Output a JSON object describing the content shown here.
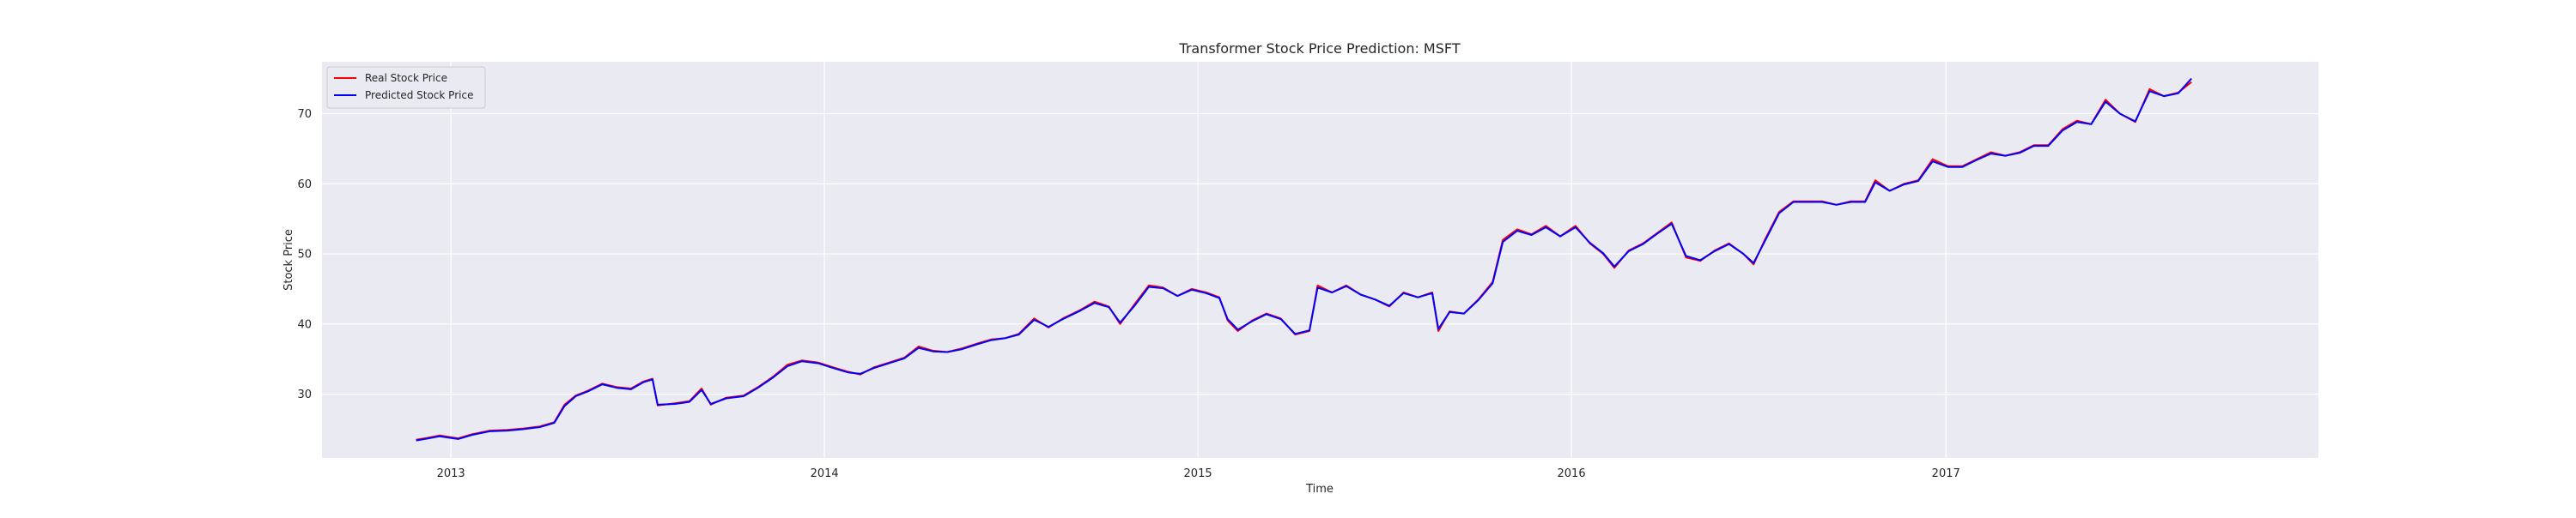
{
  "chart_data": {
    "type": "line",
    "title": "Transformer Stock Price Prediction: MSFT",
    "xlabel": "Time",
    "ylabel": "Stock Price",
    "x_range": [
      "2012-08-28",
      "2017-12-31"
    ],
    "ylim": [
      20.9,
      77.4
    ],
    "xticks": [
      {
        "date": "2013-01-01",
        "label": "2013"
      },
      {
        "date": "2014-01-01",
        "label": "2014"
      },
      {
        "date": "2015-01-01",
        "label": "2015"
      },
      {
        "date": "2016-01-01",
        "label": "2016"
      },
      {
        "date": "2017-01-01",
        "label": "2017"
      }
    ],
    "yticks": [
      30,
      40,
      50,
      60,
      70
    ],
    "grid": true,
    "style": "seaborn-darkgrid",
    "colors": {
      "background": "#eaeaf2",
      "grid": "#ffffff",
      "real": "#ff0000",
      "predicted": "#0000ff"
    },
    "legend": {
      "placement": "top-left",
      "entries": [
        {
          "label": "Real Stock Price",
          "color": "#ff0000"
        },
        {
          "label": "Predicted Stock Price",
          "color": "#0000ff"
        }
      ]
    },
    "series": [
      {
        "name": "Real Stock Price",
        "color": "#ff0000",
        "points": [
          [
            "2012-11-28",
            23.5
          ],
          [
            "2012-12-10",
            23.8
          ],
          [
            "2012-12-21",
            24.1
          ],
          [
            "2013-01-08",
            23.7
          ],
          [
            "2013-01-22",
            24.3
          ],
          [
            "2013-02-08",
            24.8
          ],
          [
            "2013-02-25",
            24.9
          ],
          [
            "2013-03-12",
            25.1
          ],
          [
            "2013-03-29",
            25.4
          ],
          [
            "2013-04-12",
            26.0
          ],
          [
            "2013-04-22",
            28.5
          ],
          [
            "2013-05-03",
            29.8
          ],
          [
            "2013-05-15",
            30.5
          ],
          [
            "2013-05-29",
            31.5
          ],
          [
            "2013-06-12",
            31.0
          ],
          [
            "2013-06-26",
            30.8
          ],
          [
            "2013-07-08",
            31.8
          ],
          [
            "2013-07-17",
            32.2
          ],
          [
            "2013-07-22",
            28.4
          ],
          [
            "2013-08-08",
            28.7
          ],
          [
            "2013-08-22",
            29.0
          ],
          [
            "2013-09-03",
            30.8
          ],
          [
            "2013-09-12",
            28.5
          ],
          [
            "2013-09-27",
            29.5
          ],
          [
            "2013-10-14",
            29.8
          ],
          [
            "2013-10-28",
            31.0
          ],
          [
            "2013-11-12",
            32.5
          ],
          [
            "2013-11-26",
            34.2
          ],
          [
            "2013-12-10",
            34.8
          ],
          [
            "2013-12-26",
            34.5
          ],
          [
            "2014-01-10",
            33.8
          ],
          [
            "2014-01-24",
            33.2
          ],
          [
            "2014-02-05",
            32.8
          ],
          [
            "2014-02-18",
            33.8
          ],
          [
            "2014-03-05",
            34.5
          ],
          [
            "2014-03-20",
            35.2
          ],
          [
            "2014-04-03",
            36.8
          ],
          [
            "2014-04-17",
            36.2
          ],
          [
            "2014-05-01",
            36.0
          ],
          [
            "2014-05-15",
            36.5
          ],
          [
            "2014-05-30",
            37.2
          ],
          [
            "2014-06-13",
            37.8
          ],
          [
            "2014-06-27",
            38.0
          ],
          [
            "2014-07-10",
            38.6
          ],
          [
            "2014-07-25",
            40.8
          ],
          [
            "2014-08-08",
            39.5
          ],
          [
            "2014-08-22",
            40.8
          ],
          [
            "2014-09-08",
            42.0
          ],
          [
            "2014-09-22",
            43.2
          ],
          [
            "2014-10-06",
            42.5
          ],
          [
            "2014-10-17",
            40.0
          ],
          [
            "2014-10-31",
            42.8
          ],
          [
            "2014-11-14",
            45.5
          ],
          [
            "2014-11-28",
            45.2
          ],
          [
            "2014-12-12",
            44.0
          ],
          [
            "2014-12-26",
            45.0
          ],
          [
            "2015-01-09",
            44.5
          ],
          [
            "2015-01-22",
            43.8
          ],
          [
            "2015-01-30",
            40.5
          ],
          [
            "2015-02-09",
            39.0
          ],
          [
            "2015-02-23",
            40.5
          ],
          [
            "2015-03-09",
            41.5
          ],
          [
            "2015-03-23",
            40.8
          ],
          [
            "2015-04-06",
            38.5
          ],
          [
            "2015-04-20",
            39.0
          ],
          [
            "2015-04-28",
            45.5
          ],
          [
            "2015-05-12",
            44.5
          ],
          [
            "2015-05-26",
            45.5
          ],
          [
            "2015-06-09",
            44.2
          ],
          [
            "2015-06-23",
            43.5
          ],
          [
            "2015-07-07",
            42.5
          ],
          [
            "2015-07-21",
            44.5
          ],
          [
            "2015-08-04",
            43.8
          ],
          [
            "2015-08-18",
            44.5
          ],
          [
            "2015-08-24",
            39.0
          ],
          [
            "2015-09-04",
            41.8
          ],
          [
            "2015-09-18",
            41.5
          ],
          [
            "2015-10-02",
            43.5
          ],
          [
            "2015-10-16",
            46.0
          ],
          [
            "2015-10-26",
            52.0
          ],
          [
            "2015-11-09",
            53.5
          ],
          [
            "2015-11-23",
            52.8
          ],
          [
            "2015-12-07",
            54.0
          ],
          [
            "2015-12-21",
            52.5
          ],
          [
            "2016-01-05",
            54.0
          ],
          [
            "2016-01-19",
            51.5
          ],
          [
            "2016-02-01",
            50.0
          ],
          [
            "2016-02-12",
            48.0
          ],
          [
            "2016-02-26",
            50.5
          ],
          [
            "2016-03-11",
            51.5
          ],
          [
            "2016-03-25",
            53.0
          ],
          [
            "2016-04-08",
            54.5
          ],
          [
            "2016-04-22",
            49.5
          ],
          [
            "2016-05-06",
            49.0
          ],
          [
            "2016-05-20",
            50.5
          ],
          [
            "2016-06-03",
            51.5
          ],
          [
            "2016-06-17",
            50.0
          ],
          [
            "2016-06-27",
            48.5
          ],
          [
            "2016-07-08",
            52.0
          ],
          [
            "2016-07-22",
            56.0
          ],
          [
            "2016-08-05",
            57.5
          ],
          [
            "2016-08-19",
            57.5
          ],
          [
            "2016-09-02",
            57.5
          ],
          [
            "2016-09-16",
            57.0
          ],
          [
            "2016-09-30",
            57.5
          ],
          [
            "2016-10-14",
            57.5
          ],
          [
            "2016-10-24",
            60.5
          ],
          [
            "2016-11-07",
            59.0
          ],
          [
            "2016-11-21",
            60.0
          ],
          [
            "2016-12-05",
            60.5
          ],
          [
            "2016-12-19",
            63.5
          ],
          [
            "2017-01-03",
            62.5
          ],
          [
            "2017-01-17",
            62.5
          ],
          [
            "2017-01-31",
            63.5
          ],
          [
            "2017-02-14",
            64.5
          ],
          [
            "2017-02-28",
            64.0
          ],
          [
            "2017-03-14",
            64.5
          ],
          [
            "2017-03-28",
            65.5
          ],
          [
            "2017-04-11",
            65.5
          ],
          [
            "2017-04-25",
            67.8
          ],
          [
            "2017-05-09",
            69.0
          ],
          [
            "2017-05-23",
            68.5
          ],
          [
            "2017-06-06",
            72.0
          ],
          [
            "2017-06-20",
            70.0
          ],
          [
            "2017-07-05",
            68.8
          ],
          [
            "2017-07-19",
            73.5
          ],
          [
            "2017-08-02",
            72.5
          ],
          [
            "2017-08-16",
            73.0
          ],
          [
            "2017-08-29",
            74.5
          ]
        ]
      },
      {
        "name": "Predicted Stock Price",
        "color": "#0000ff",
        "points": [
          [
            "2012-11-28",
            23.4
          ],
          [
            "2012-12-10",
            23.7
          ],
          [
            "2012-12-21",
            24.0
          ],
          [
            "2013-01-08",
            23.6
          ],
          [
            "2013-01-22",
            24.2
          ],
          [
            "2013-02-08",
            24.7
          ],
          [
            "2013-02-25",
            24.8
          ],
          [
            "2013-03-12",
            25.0
          ],
          [
            "2013-03-29",
            25.3
          ],
          [
            "2013-04-12",
            25.9
          ],
          [
            "2013-04-22",
            28.3
          ],
          [
            "2013-05-03",
            29.7
          ],
          [
            "2013-05-15",
            30.4
          ],
          [
            "2013-05-29",
            31.4
          ],
          [
            "2013-06-12",
            30.9
          ],
          [
            "2013-06-26",
            30.7
          ],
          [
            "2013-07-08",
            31.7
          ],
          [
            "2013-07-17",
            32.1
          ],
          [
            "2013-07-22",
            28.5
          ],
          [
            "2013-08-08",
            28.6
          ],
          [
            "2013-08-22",
            28.9
          ],
          [
            "2013-09-03",
            30.6
          ],
          [
            "2013-09-12",
            28.6
          ],
          [
            "2013-09-27",
            29.4
          ],
          [
            "2013-10-14",
            29.7
          ],
          [
            "2013-10-28",
            30.9
          ],
          [
            "2013-11-12",
            32.4
          ],
          [
            "2013-11-26",
            34.0
          ],
          [
            "2013-12-10",
            34.7
          ],
          [
            "2013-12-26",
            34.4
          ],
          [
            "2014-01-10",
            33.7
          ],
          [
            "2014-01-24",
            33.1
          ],
          [
            "2014-02-05",
            32.9
          ],
          [
            "2014-02-18",
            33.7
          ],
          [
            "2014-03-05",
            34.4
          ],
          [
            "2014-03-20",
            35.1
          ],
          [
            "2014-04-03",
            36.6
          ],
          [
            "2014-04-17",
            36.1
          ],
          [
            "2014-05-01",
            36.0
          ],
          [
            "2014-05-15",
            36.4
          ],
          [
            "2014-05-30",
            37.1
          ],
          [
            "2014-06-13",
            37.7
          ],
          [
            "2014-06-27",
            38.0
          ],
          [
            "2014-07-10",
            38.5
          ],
          [
            "2014-07-25",
            40.6
          ],
          [
            "2014-08-08",
            39.6
          ],
          [
            "2014-08-22",
            40.7
          ],
          [
            "2014-09-08",
            41.9
          ],
          [
            "2014-09-22",
            43.0
          ],
          [
            "2014-10-06",
            42.4
          ],
          [
            "2014-10-17",
            40.2
          ],
          [
            "2014-10-31",
            42.6
          ],
          [
            "2014-11-14",
            45.3
          ],
          [
            "2014-11-28",
            45.1
          ],
          [
            "2014-12-12",
            44.0
          ],
          [
            "2014-12-26",
            44.9
          ],
          [
            "2015-01-09",
            44.4
          ],
          [
            "2015-01-22",
            43.7
          ],
          [
            "2015-01-30",
            40.7
          ],
          [
            "2015-02-09",
            39.2
          ],
          [
            "2015-02-23",
            40.4
          ],
          [
            "2015-03-09",
            41.4
          ],
          [
            "2015-03-23",
            40.7
          ],
          [
            "2015-04-06",
            38.6
          ],
          [
            "2015-04-20",
            39.1
          ],
          [
            "2015-04-28",
            45.2
          ],
          [
            "2015-05-12",
            44.5
          ],
          [
            "2015-05-26",
            45.4
          ],
          [
            "2015-06-09",
            44.2
          ],
          [
            "2015-06-23",
            43.5
          ],
          [
            "2015-07-07",
            42.6
          ],
          [
            "2015-07-21",
            44.4
          ],
          [
            "2015-08-04",
            43.8
          ],
          [
            "2015-08-18",
            44.4
          ],
          [
            "2015-08-24",
            39.3
          ],
          [
            "2015-09-04",
            41.7
          ],
          [
            "2015-09-18",
            41.5
          ],
          [
            "2015-10-02",
            43.4
          ],
          [
            "2015-10-16",
            45.8
          ],
          [
            "2015-10-26",
            51.7
          ],
          [
            "2015-11-09",
            53.3
          ],
          [
            "2015-11-23",
            52.7
          ],
          [
            "2015-12-07",
            53.8
          ],
          [
            "2015-12-21",
            52.5
          ],
          [
            "2016-01-05",
            53.8
          ],
          [
            "2016-01-19",
            51.6
          ],
          [
            "2016-02-01",
            50.1
          ],
          [
            "2016-02-12",
            48.2
          ],
          [
            "2016-02-26",
            50.4
          ],
          [
            "2016-03-11",
            51.4
          ],
          [
            "2016-03-25",
            52.9
          ],
          [
            "2016-04-08",
            54.3
          ],
          [
            "2016-04-22",
            49.7
          ],
          [
            "2016-05-06",
            49.1
          ],
          [
            "2016-05-20",
            50.4
          ],
          [
            "2016-06-03",
            51.4
          ],
          [
            "2016-06-17",
            50.0
          ],
          [
            "2016-06-27",
            48.7
          ],
          [
            "2016-07-08",
            51.8
          ],
          [
            "2016-07-22",
            55.8
          ],
          [
            "2016-08-05",
            57.4
          ],
          [
            "2016-08-19",
            57.4
          ],
          [
            "2016-09-02",
            57.4
          ],
          [
            "2016-09-16",
            57.0
          ],
          [
            "2016-09-30",
            57.4
          ],
          [
            "2016-10-14",
            57.4
          ],
          [
            "2016-10-24",
            60.2
          ],
          [
            "2016-11-07",
            59.0
          ],
          [
            "2016-11-21",
            59.9
          ],
          [
            "2016-12-05",
            60.4
          ],
          [
            "2016-12-19",
            63.2
          ],
          [
            "2017-01-03",
            62.4
          ],
          [
            "2017-01-17",
            62.4
          ],
          [
            "2017-01-31",
            63.4
          ],
          [
            "2017-02-14",
            64.3
          ],
          [
            "2017-02-28",
            64.0
          ],
          [
            "2017-03-14",
            64.4
          ],
          [
            "2017-03-28",
            65.4
          ],
          [
            "2017-04-11",
            65.4
          ],
          [
            "2017-04-25",
            67.6
          ],
          [
            "2017-05-09",
            68.8
          ],
          [
            "2017-05-23",
            68.5
          ],
          [
            "2017-06-06",
            71.7
          ],
          [
            "2017-06-20",
            70.0
          ],
          [
            "2017-07-05",
            68.9
          ],
          [
            "2017-07-19",
            73.2
          ],
          [
            "2017-08-02",
            72.5
          ],
          [
            "2017-08-16",
            72.9
          ],
          [
            "2017-08-29",
            75.0
          ]
        ]
      }
    ]
  }
}
